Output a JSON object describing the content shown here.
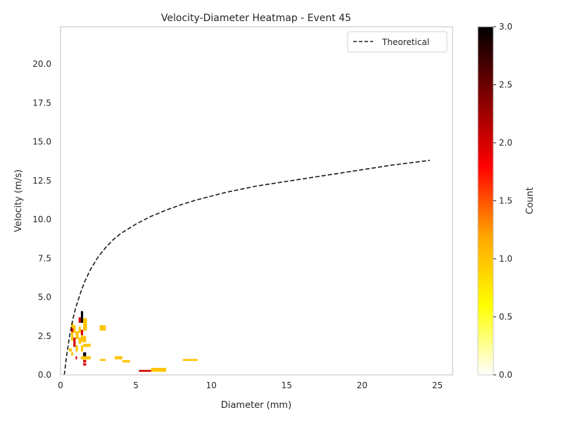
{
  "chart_data": {
    "type": "heatmap",
    "title": "Velocity-Diameter Heatmap - Event 45",
    "xlabel": "Diameter (mm)",
    "ylabel": "Velocity (m/s)",
    "xlim": [
      0,
      26
    ],
    "ylim": [
      0,
      22.4
    ],
    "xticks": [
      0,
      5,
      10,
      15,
      20,
      25
    ],
    "yticks": [
      0.0,
      2.5,
      5.0,
      7.5,
      10.0,
      12.5,
      15.0,
      17.5,
      20.0
    ],
    "grid": false,
    "legend": {
      "placement": "top-right",
      "entries": [
        "Theoretical"
      ]
    },
    "colorbar": {
      "label": "Count",
      "min": 0,
      "max": 3,
      "ticks": [
        0.0,
        0.5,
        1.0,
        1.5,
        2.0,
        2.5,
        3.0
      ],
      "colors": [
        "#ffffff",
        "#ffff00",
        "#ffa500",
        "#ff0000",
        "#800000",
        "#000000"
      ]
    },
    "series": [
      {
        "name": "Theoretical",
        "style": "dashed",
        "color": "#1a1a1a",
        "x": [
          0.25,
          0.4,
          0.6,
          0.8,
          1.0,
          1.3,
          1.6,
          2.0,
          2.5,
          3.0,
          3.5,
          4.0,
          4.5,
          5.0,
          6.0,
          7.0,
          8.0,
          9.0,
          10.0,
          11.0,
          12.0,
          13.0,
          14.0,
          15.0,
          16.0,
          17.0,
          18.0,
          19.0,
          20.0,
          21.0,
          22.0,
          23.0,
          24.5
        ],
        "y": [
          0.0,
          1.2,
          2.5,
          3.5,
          4.3,
          5.2,
          6.0,
          6.8,
          7.6,
          8.2,
          8.7,
          9.1,
          9.4,
          9.7,
          10.2,
          10.6,
          10.95,
          11.25,
          11.5,
          11.75,
          11.95,
          12.15,
          12.3,
          12.45,
          12.6,
          12.75,
          12.9,
          13.05,
          13.2,
          13.35,
          13.5,
          13.62,
          13.8
        ]
      }
    ],
    "cells": [
      {
        "x": 0.55,
        "y": 1.5,
        "w": 0.2,
        "h": 0.2,
        "v": 1
      },
      {
        "x": 0.7,
        "y": 3.0,
        "w": 0.15,
        "h": 0.35,
        "v": 1
      },
      {
        "x": 0.7,
        "y": 2.75,
        "w": 0.15,
        "h": 0.25,
        "v": 2
      },
      {
        "x": 0.7,
        "y": 2.2,
        "w": 0.15,
        "h": 0.55,
        "v": 1
      },
      {
        "x": 0.7,
        "y": 1.25,
        "w": 0.15,
        "h": 0.2,
        "v": 1
      },
      {
        "x": 0.85,
        "y": 2.7,
        "w": 0.15,
        "h": 0.5,
        "v": 1
      },
      {
        "x": 0.85,
        "y": 1.8,
        "w": 0.15,
        "h": 0.6,
        "v": 2
      },
      {
        "x": 1.0,
        "y": 2.3,
        "w": 0.2,
        "h": 0.5,
        "v": 1
      },
      {
        "x": 1.0,
        "y": 1.5,
        "w": 0.15,
        "h": 0.4,
        "v": 1
      },
      {
        "x": 1.0,
        "y": 1.0,
        "w": 0.1,
        "h": 0.2,
        "v": 2
      },
      {
        "x": 1.2,
        "y": 2.0,
        "w": 0.15,
        "h": 0.4,
        "v": 1
      },
      {
        "x": 1.2,
        "y": 2.7,
        "w": 0.15,
        "h": 0.4,
        "v": 1
      },
      {
        "x": 1.2,
        "y": 3.35,
        "w": 0.15,
        "h": 0.35,
        "v": 2
      },
      {
        "x": 1.35,
        "y": 3.65,
        "w": 0.15,
        "h": 0.45,
        "v": 3
      },
      {
        "x": 1.35,
        "y": 3.35,
        "w": 0.15,
        "h": 0.3,
        "v": 3
      },
      {
        "x": 1.35,
        "y": 2.55,
        "w": 0.15,
        "h": 0.35,
        "v": 2
      },
      {
        "x": 1.35,
        "y": 2.1,
        "w": 0.15,
        "h": 0.45,
        "v": 1
      },
      {
        "x": 1.35,
        "y": 1.5,
        "w": 0.15,
        "h": 0.4,
        "v": 1
      },
      {
        "x": 1.35,
        "y": 1.0,
        "w": 0.2,
        "h": 0.2,
        "v": 1
      },
      {
        "x": 1.5,
        "y": 3.3,
        "w": 0.25,
        "h": 0.35,
        "v": 1
      },
      {
        "x": 1.5,
        "y": 2.85,
        "w": 0.25,
        "h": 0.45,
        "v": 1
      },
      {
        "x": 1.5,
        "y": 2.1,
        "w": 0.2,
        "h": 0.4,
        "v": 1
      },
      {
        "x": 1.5,
        "y": 1.8,
        "w": 0.5,
        "h": 0.2,
        "v": 1
      },
      {
        "x": 1.5,
        "y": 1.2,
        "w": 0.2,
        "h": 0.25,
        "v": 3
      },
      {
        "x": 1.5,
        "y": 0.95,
        "w": 0.2,
        "h": 0.25,
        "v": 1
      },
      {
        "x": 1.5,
        "y": 0.8,
        "w": 0.2,
        "h": 0.15,
        "v": 2
      },
      {
        "x": 1.5,
        "y": 0.6,
        "w": 0.2,
        "h": 0.15,
        "v": 2
      },
      {
        "x": 1.7,
        "y": 1.0,
        "w": 0.3,
        "h": 0.2,
        "v": 1
      },
      {
        "x": 2.6,
        "y": 2.85,
        "w": 0.4,
        "h": 0.35,
        "v": 1
      },
      {
        "x": 2.6,
        "y": 0.9,
        "w": 0.4,
        "h": 0.12,
        "v": 1
      },
      {
        "x": 3.6,
        "y": 1.0,
        "w": 0.5,
        "h": 0.2,
        "v": 1
      },
      {
        "x": 4.1,
        "y": 0.8,
        "w": 0.5,
        "h": 0.15,
        "v": 1
      },
      {
        "x": 5.2,
        "y": 0.2,
        "w": 0.8,
        "h": 0.12,
        "v": 2
      },
      {
        "x": 6.0,
        "y": 0.2,
        "w": 1.0,
        "h": 0.25,
        "v": 1
      },
      {
        "x": 8.1,
        "y": 0.9,
        "w": 1.0,
        "h": 0.12,
        "v": 1
      }
    ]
  }
}
